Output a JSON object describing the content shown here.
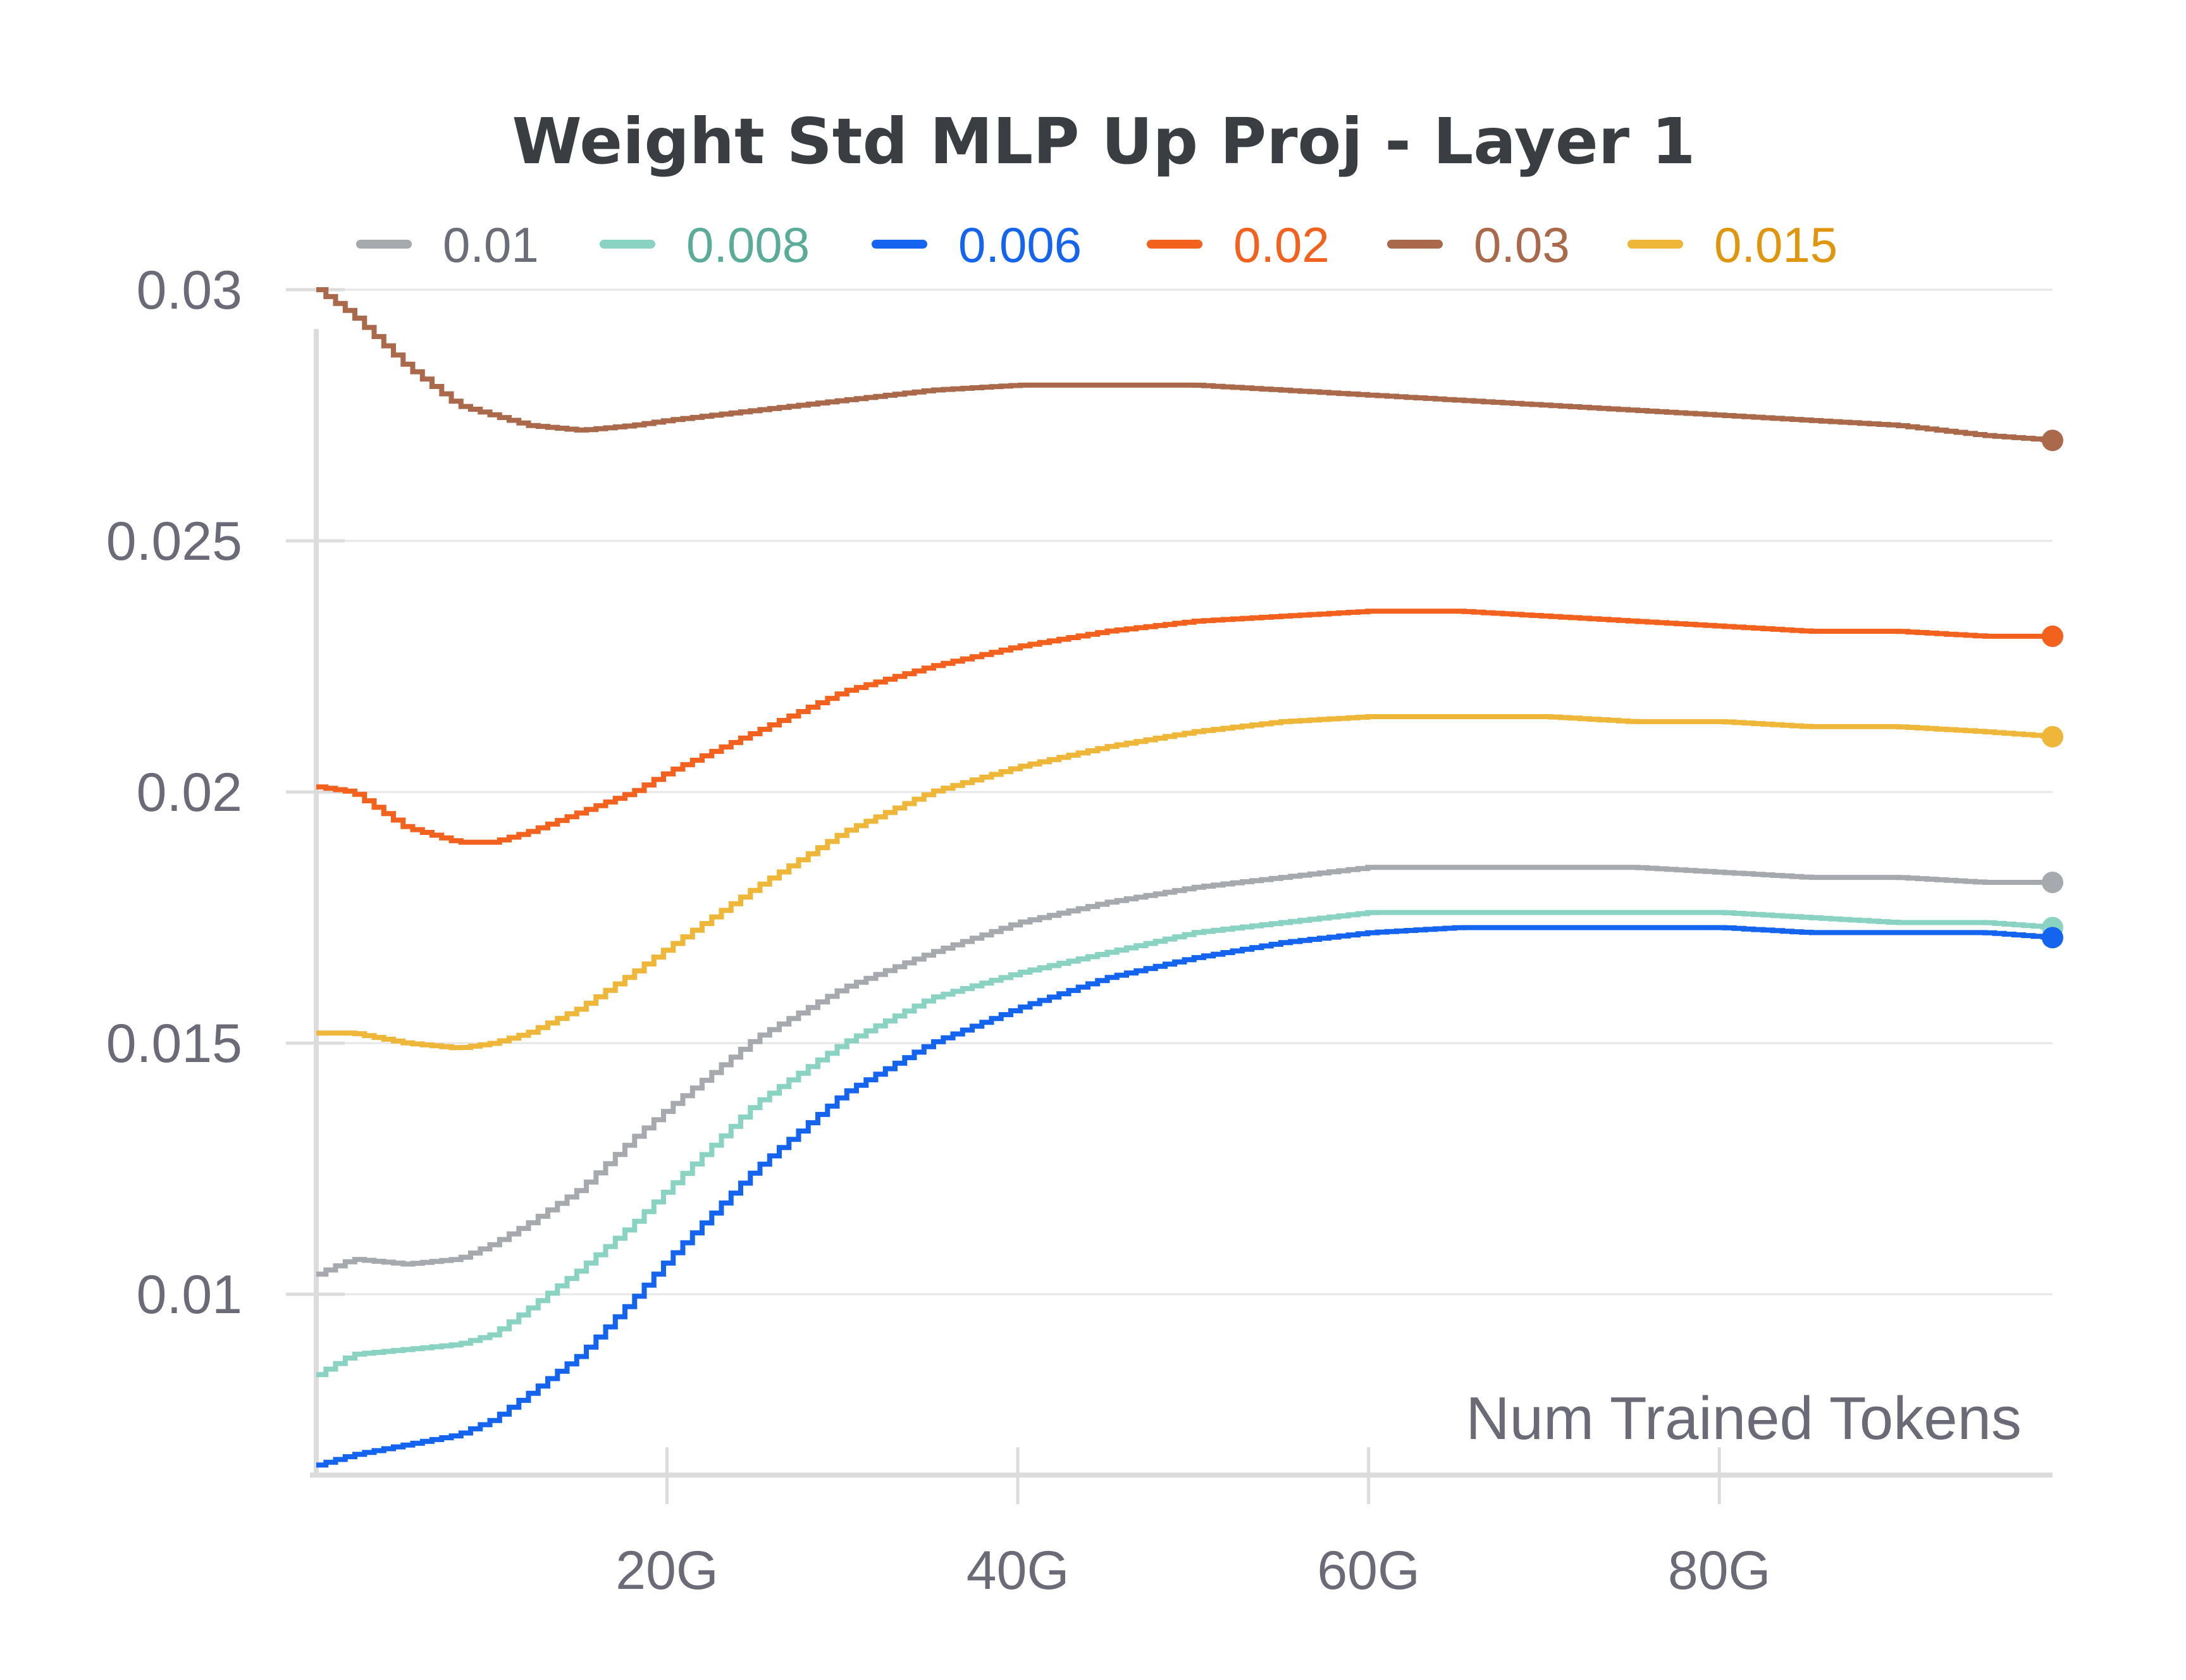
{
  "chart_data": {
    "type": "line",
    "title": "Weight Std MLP Up Proj - Layer 1",
    "xlabel": "Num Trained Tokens",
    "ylabel": "",
    "xlim": [
      0,
      99
    ],
    "ylim": [
      0.0064,
      0.03
    ],
    "x_ticks": [
      {
        "value": 20,
        "label": "20G"
      },
      {
        "value": 40,
        "label": "40G"
      },
      {
        "value": 60,
        "label": "60G"
      },
      {
        "value": 80,
        "label": "80G"
      }
    ],
    "y_ticks": [
      {
        "value": 0.01,
        "label": "0.01"
      },
      {
        "value": 0.015,
        "label": "0.015"
      },
      {
        "value": 0.02,
        "label": "0.02"
      },
      {
        "value": 0.025,
        "label": "0.025"
      },
      {
        "value": 0.03,
        "label": "0.03"
      }
    ],
    "grid": true,
    "legend": "top",
    "x": [
      0,
      2,
      5,
      8,
      10,
      12,
      15,
      18,
      20,
      25,
      30,
      35,
      40,
      45,
      50,
      55,
      60,
      65,
      70,
      75,
      80,
      85,
      90,
      95,
      99
    ],
    "series": [
      {
        "name": "0.01",
        "color": "#a6a9ae",
        "text_color": "#6b6e78",
        "values": [
          0.0104,
          0.0107,
          0.0106,
          0.0107,
          0.011,
          0.0114,
          0.0121,
          0.0131,
          0.0137,
          0.0151,
          0.0161,
          0.0168,
          0.0174,
          0.0178,
          0.0181,
          0.0183,
          0.0185,
          0.0185,
          0.0185,
          0.0185,
          0.0184,
          0.0183,
          0.0183,
          0.0182,
          0.0182
        ]
      },
      {
        "name": "0.008",
        "color": "#8ad3c2",
        "text_color": "#5aab98",
        "values": [
          0.0084,
          0.0088,
          0.0089,
          0.009,
          0.0092,
          0.0097,
          0.0105,
          0.0114,
          0.0121,
          0.0138,
          0.015,
          0.0159,
          0.0164,
          0.0168,
          0.0172,
          0.0174,
          0.0176,
          0.0176,
          0.0176,
          0.0176,
          0.0176,
          0.0175,
          0.0174,
          0.0174,
          0.0173
        ]
      },
      {
        "name": "0.006",
        "color": "#1464f0",
        "text_color": "#1464f0",
        "values": [
          0.0066,
          0.0068,
          0.007,
          0.0072,
          0.0075,
          0.008,
          0.0088,
          0.0099,
          0.0107,
          0.0125,
          0.014,
          0.015,
          0.0157,
          0.0163,
          0.0167,
          0.017,
          0.0172,
          0.0173,
          0.0173,
          0.0173,
          0.0173,
          0.0172,
          0.0172,
          0.0172,
          0.0171
        ]
      },
      {
        "name": "0.02",
        "color": "#f2621e",
        "text_color": "#f2621e",
        "values": [
          0.0201,
          0.02,
          0.0193,
          0.019,
          0.019,
          0.0192,
          0.0196,
          0.02,
          0.0204,
          0.0212,
          0.022,
          0.0225,
          0.0229,
          0.0232,
          0.0234,
          0.0235,
          0.0236,
          0.0236,
          0.0235,
          0.0234,
          0.0233,
          0.0232,
          0.0232,
          0.0231,
          0.0231
        ]
      },
      {
        "name": "0.03",
        "color": "#a9694a",
        "text_color": "#a9694a",
        "values": [
          0.03,
          0.0295,
          0.0285,
          0.0277,
          0.0275,
          0.0273,
          0.0272,
          0.0273,
          0.0274,
          0.0276,
          0.0278,
          0.028,
          0.0281,
          0.0281,
          0.0281,
          0.028,
          0.0279,
          0.0278,
          0.0277,
          0.0276,
          0.0275,
          0.0274,
          0.0273,
          0.0271,
          0.027
        ]
      },
      {
        "name": "0.015",
        "color": "#eeb73a",
        "text_color": "#e0950e",
        "values": [
          0.0152,
          0.0152,
          0.015,
          0.0149,
          0.015,
          0.0152,
          0.0157,
          0.0164,
          0.0169,
          0.0181,
          0.0192,
          0.02,
          0.0205,
          0.0209,
          0.0212,
          0.0214,
          0.0215,
          0.0215,
          0.0215,
          0.0214,
          0.0214,
          0.0213,
          0.0213,
          0.0212,
          0.0211
        ]
      }
    ]
  }
}
